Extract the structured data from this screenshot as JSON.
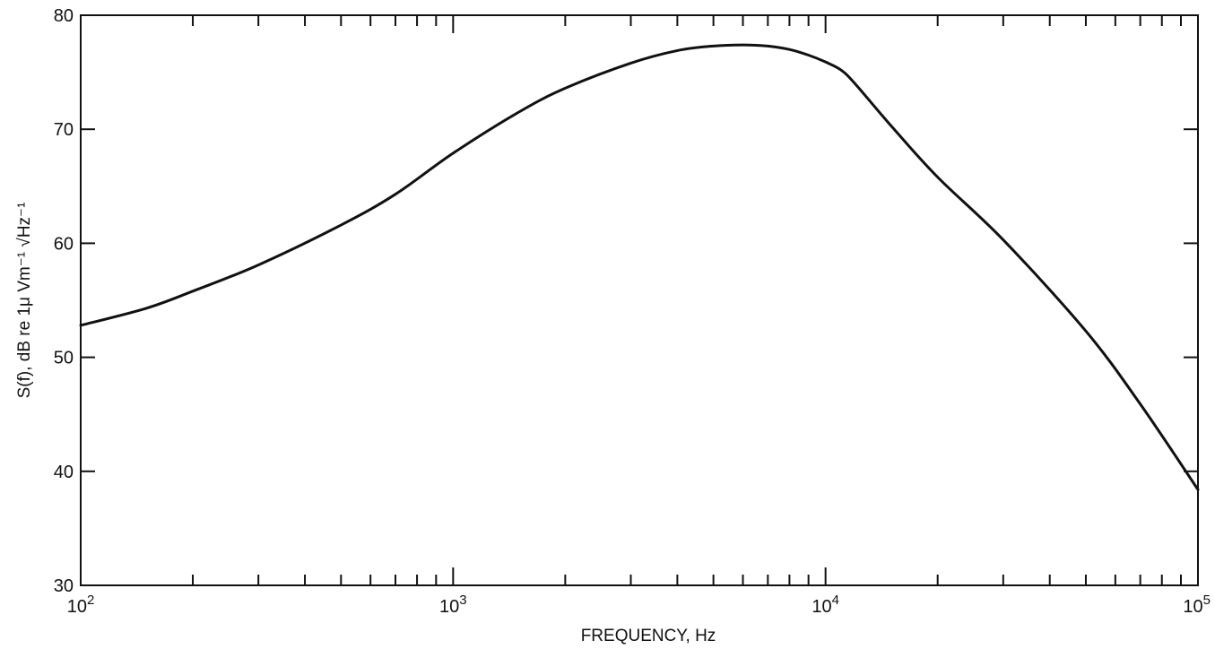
{
  "chart_data": {
    "type": "line",
    "xscale": "log",
    "xlim": [
      100,
      100000
    ],
    "ylim": [
      30,
      80
    ],
    "xlabel": "FREQUENCY,  Hz",
    "ylabel": "S(f), dB re 1μ Vm⁻¹ √Hz⁻¹",
    "x_ticks": [
      {
        "base": "10",
        "exp": "2",
        "value": 100
      },
      {
        "base": "10",
        "exp": "3",
        "value": 1000
      },
      {
        "base": "10",
        "exp": "4",
        "value": 10000
      },
      {
        "base": "10",
        "exp": "5",
        "value": 100000
      }
    ],
    "y_ticks": [
      "30",
      "40",
      "50",
      "60",
      "70",
      "80"
    ],
    "grid": false,
    "series": [
      {
        "x": [
          100,
          150,
          200,
          300,
          500,
          700,
          1000,
          1500,
          2000,
          3000,
          4000,
          5000,
          6000,
          7000,
          8000,
          9000,
          10000,
          11000,
          12000,
          15000,
          20000,
          30000,
          50000,
          70000,
          100000
        ],
        "y": [
          52.8,
          54.3,
          55.8,
          58.1,
          61.6,
          64.3,
          67.9,
          71.5,
          73.6,
          75.8,
          76.9,
          77.3,
          77.4,
          77.3,
          77.0,
          76.5,
          75.9,
          75.2,
          74.0,
          70.3,
          65.8,
          60.3,
          52.3,
          45.9,
          38.4
        ],
        "color": "#111111"
      }
    ]
  }
}
